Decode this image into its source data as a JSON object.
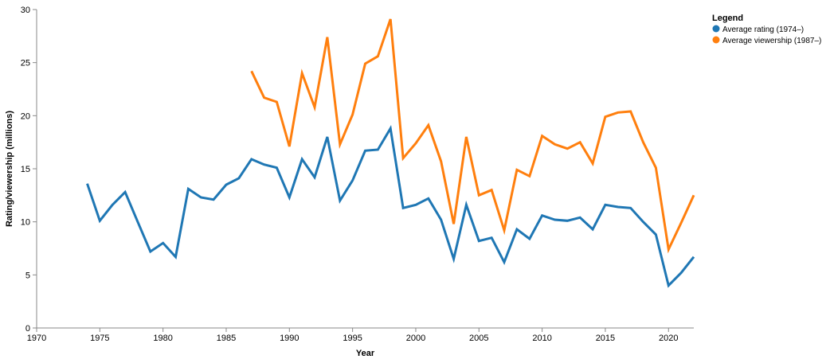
{
  "chart_data": {
    "type": "line",
    "xlabel": "Year",
    "ylabel": "Rating/viewership (millions)",
    "xlim": [
      1970,
      2022
    ],
    "ylim": [
      0,
      30
    ],
    "xticks": [
      1970,
      1975,
      1980,
      1985,
      1990,
      1995,
      2000,
      2005,
      2010,
      2015,
      2020
    ],
    "yticks": [
      0,
      5,
      10,
      15,
      20,
      25,
      30
    ],
    "grid": false,
    "legend": {
      "title": "Legend",
      "position": "top-right"
    },
    "series": [
      {
        "name": "Average rating (1974–)",
        "color": "#1f77b4",
        "x": [
          1974,
          1975,
          1976,
          1977,
          1978,
          1979,
          1980,
          1981,
          1982,
          1983,
          1984,
          1985,
          1986,
          1987,
          1988,
          1989,
          1990,
          1991,
          1992,
          1993,
          1994,
          1995,
          1996,
          1997,
          1998,
          1999,
          2000,
          2001,
          2002,
          2003,
          2004,
          2005,
          2006,
          2007,
          2008,
          2009,
          2010,
          2011,
          2012,
          2013,
          2014,
          2015,
          2016,
          2017,
          2018,
          2019,
          2020,
          2021,
          2022
        ],
        "y": [
          13.6,
          10.1,
          11.6,
          12.8,
          10.0,
          7.2,
          8.0,
          6.7,
          13.1,
          12.3,
          12.1,
          13.5,
          14.1,
          15.9,
          15.4,
          15.1,
          12.3,
          15.9,
          14.2,
          18.0,
          12.0,
          13.9,
          16.7,
          16.8,
          18.8,
          11.3,
          11.6,
          12.2,
          10.2,
          6.5,
          11.6,
          8.2,
          8.5,
          6.2,
          9.3,
          8.4,
          10.6,
          10.2,
          10.1,
          10.4,
          9.3,
          11.6,
          11.4,
          11.3,
          10.0,
          8.8,
          4.0,
          5.2,
          6.7
        ]
      },
      {
        "name": "Average viewership (1987–)",
        "color": "#ff7f0e",
        "x": [
          1987,
          1988,
          1989,
          1990,
          1991,
          1992,
          1993,
          1994,
          1995,
          1996,
          1997,
          1998,
          1999,
          2000,
          2001,
          2002,
          2003,
          2004,
          2005,
          2006,
          2007,
          2008,
          2009,
          2010,
          2011,
          2012,
          2013,
          2014,
          2015,
          2016,
          2017,
          2018,
          2019,
          2020,
          2021,
          2022
        ],
        "y": [
          24.2,
          21.7,
          21.3,
          17.1,
          24.0,
          20.8,
          27.4,
          17.3,
          20.1,
          24.9,
          25.6,
          29.1,
          16.0,
          17.4,
          19.1,
          15.7,
          9.8,
          18.0,
          12.5,
          13.0,
          9.2,
          14.9,
          14.3,
          18.1,
          17.3,
          16.9,
          17.5,
          15.5,
          19.9,
          20.3,
          20.4,
          17.5,
          15.1,
          7.4,
          9.9,
          12.5
        ]
      }
    ]
  }
}
